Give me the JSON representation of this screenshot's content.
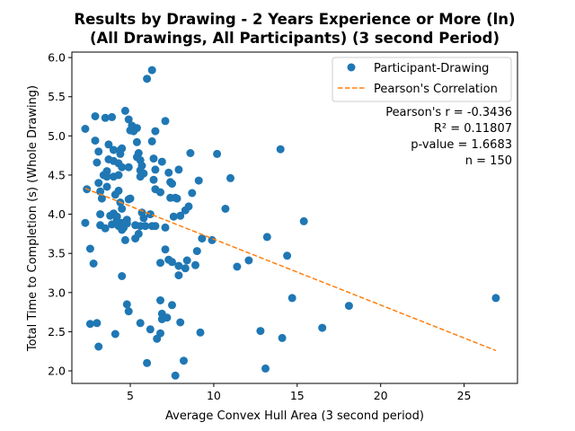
{
  "chart_data": {
    "type": "scatter",
    "title": [
      "Results by Drawing - 2 Years Experience or More (ln)",
      "(All Drawings, All Participants) (3 second Period)"
    ],
    "xlabel": "Average Convex Hull Area (3 second period)",
    "ylabel": "Total Time to Completion (s) (Whole Drawing)",
    "xlim": [
      1.5,
      28.2
    ],
    "ylim": [
      1.84,
      6.07
    ],
    "xticks": [
      5,
      10,
      15,
      20,
      25
    ],
    "yticks": [
      2.0,
      2.5,
      3.0,
      3.5,
      4.0,
      4.5,
      5.0,
      5.5,
      6.0
    ],
    "grid": false,
    "legend": {
      "placement": "top-right",
      "entries": [
        {
          "label": "Participant-Drawing",
          "kind": "marker",
          "color": "#1f77b4"
        },
        {
          "label": "Pearson's Correlation",
          "kind": "dashed-line",
          "color": "#ff7f0e"
        }
      ]
    },
    "annotations": [
      "Pearson's r = -0.3436",
      "R² = 0.11807",
      "p-value = 1.6683",
      "n = 150"
    ],
    "series": [
      {
        "name": "Participant-Drawing",
        "color": "#1f77b4",
        "points": [
          [
            2.3,
            5.09
          ],
          [
            2.4,
            4.32
          ],
          [
            2.3,
            3.89
          ],
          [
            2.6,
            3.56
          ],
          [
            2.8,
            3.37
          ],
          [
            2.6,
            2.6
          ],
          [
            3.0,
            2.61
          ],
          [
            3.1,
            2.31
          ],
          [
            2.9,
            5.25
          ],
          [
            2.9,
            4.94
          ],
          [
            3.1,
            4.8
          ],
          [
            3.0,
            4.66
          ],
          [
            3.1,
            4.4
          ],
          [
            3.2,
            4.29
          ],
          [
            3.3,
            4.2
          ],
          [
            3.2,
            4.0
          ],
          [
            3.2,
            3.86
          ],
          [
            3.5,
            3.82
          ],
          [
            3.4,
            4.5
          ],
          [
            3.6,
            4.55
          ],
          [
            3.6,
            4.48
          ],
          [
            3.6,
            4.35
          ],
          [
            3.5,
            5.23
          ],
          [
            3.9,
            5.24
          ],
          [
            3.7,
            4.89
          ],
          [
            3.7,
            4.7
          ],
          [
            4.0,
            4.82
          ],
          [
            4.0,
            4.68
          ],
          [
            4.0,
            4.48
          ],
          [
            4.1,
            4.25
          ],
          [
            3.8,
            3.98
          ],
          [
            4.0,
            4.01
          ],
          [
            4.2,
            3.97
          ],
          [
            3.9,
            3.87
          ],
          [
            4.3,
            3.85
          ],
          [
            4.3,
            4.3
          ],
          [
            4.4,
            4.82
          ],
          [
            4.5,
            4.84
          ],
          [
            4.4,
            4.77
          ],
          [
            4.3,
            4.65
          ],
          [
            4.5,
            4.6
          ],
          [
            4.3,
            4.5
          ],
          [
            4.7,
            5.32
          ],
          [
            4.9,
            5.21
          ],
          [
            5.1,
            5.13
          ],
          [
            5.0,
            5.07
          ],
          [
            5.4,
            5.1
          ],
          [
            5.4,
            4.92
          ],
          [
            5.5,
            4.78
          ],
          [
            5.4,
            4.73
          ],
          [
            5.6,
            4.69
          ],
          [
            5.7,
            4.62
          ],
          [
            5.6,
            4.56
          ],
          [
            5.6,
            4.48
          ],
          [
            5.8,
            4.52
          ],
          [
            4.9,
            4.6
          ],
          [
            4.4,
            4.15
          ],
          [
            4.5,
            4.07
          ],
          [
            4.9,
            4.19
          ],
          [
            4.8,
            3.93
          ],
          [
            4.5,
            3.89
          ],
          [
            4.6,
            3.83
          ],
          [
            4.8,
            3.88
          ],
          [
            4.5,
            3.8
          ],
          [
            4.7,
            3.67
          ],
          [
            5.3,
            3.86
          ],
          [
            5.3,
            3.69
          ],
          [
            5.5,
            3.75
          ],
          [
            5.6,
            3.85
          ],
          [
            5.7,
            4.02
          ],
          [
            5.9,
            3.85
          ],
          [
            6.3,
            3.85
          ],
          [
            6.2,
            4.0
          ],
          [
            6.5,
            3.85
          ],
          [
            6.0,
            5.73
          ],
          [
            6.3,
            5.84
          ],
          [
            6.5,
            5.06
          ],
          [
            6.3,
            4.93
          ],
          [
            6.4,
            4.71
          ],
          [
            6.5,
            4.57
          ],
          [
            6.4,
            4.44
          ],
          [
            6.5,
            4.32
          ],
          [
            6.8,
            4.28
          ],
          [
            6.9,
            4.67
          ],
          [
            7.1,
            5.19
          ],
          [
            7.3,
            4.53
          ],
          [
            7.4,
            4.41
          ],
          [
            7.4,
            4.21
          ],
          [
            7.5,
            4.39
          ],
          [
            7.7,
            4.21
          ],
          [
            7.8,
            4.2
          ],
          [
            7.9,
            4.57
          ],
          [
            8.0,
            3.98
          ],
          [
            8.3,
            4.05
          ],
          [
            8.5,
            4.1
          ],
          [
            8.6,
            4.78
          ],
          [
            8.7,
            4.27
          ],
          [
            9.1,
            4.43
          ],
          [
            7.1,
            3.83
          ],
          [
            7.6,
            3.97
          ],
          [
            7.1,
            3.55
          ],
          [
            7.3,
            3.42
          ],
          [
            6.8,
            3.38
          ],
          [
            7.5,
            3.39
          ],
          [
            7.9,
            3.34
          ],
          [
            7.9,
            3.22
          ],
          [
            8.3,
            3.31
          ],
          [
            8.4,
            3.41
          ],
          [
            8.9,
            3.35
          ],
          [
            9.0,
            3.53
          ],
          [
            9.3,
            3.69
          ],
          [
            9.9,
            3.67
          ],
          [
            10.2,
            4.77
          ],
          [
            10.7,
            4.07
          ],
          [
            11.0,
            4.46
          ],
          [
            11.4,
            3.33
          ],
          [
            12.1,
            3.41
          ],
          [
            13.2,
            3.71
          ],
          [
            14.0,
            4.83
          ],
          [
            15.4,
            3.91
          ],
          [
            14.4,
            3.47
          ],
          [
            14.7,
            2.93
          ],
          [
            18.1,
            2.83
          ],
          [
            26.9,
            2.93
          ],
          [
            16.5,
            2.55
          ],
          [
            14.1,
            2.42
          ],
          [
            12.8,
            2.51
          ],
          [
            13.1,
            2.03
          ],
          [
            9.2,
            2.49
          ],
          [
            8.0,
            2.62
          ],
          [
            8.2,
            2.13
          ],
          [
            7.7,
            1.94
          ],
          [
            6.8,
            2.9
          ],
          [
            6.9,
            2.73
          ],
          [
            6.9,
            2.66
          ],
          [
            7.5,
            2.84
          ],
          [
            7.2,
            2.68
          ],
          [
            6.8,
            2.48
          ],
          [
            6.6,
            2.41
          ],
          [
            6.2,
            2.53
          ],
          [
            5.6,
            2.61
          ],
          [
            6.0,
            2.1
          ],
          [
            4.8,
            2.85
          ],
          [
            4.9,
            2.76
          ],
          [
            4.5,
            3.21
          ],
          [
            4.1,
            2.47
          ],
          [
            5.0,
            4.2
          ],
          [
            4.2,
            3.92
          ],
          [
            5.2,
            5.06
          ],
          [
            5.8,
            3.95
          ]
        ]
      },
      {
        "name": "Pearson's Correlation",
        "color": "#ff7f0e",
        "line": [
          [
            2.3,
            4.33
          ],
          [
            26.9,
            2.26
          ]
        ]
      }
    ]
  }
}
